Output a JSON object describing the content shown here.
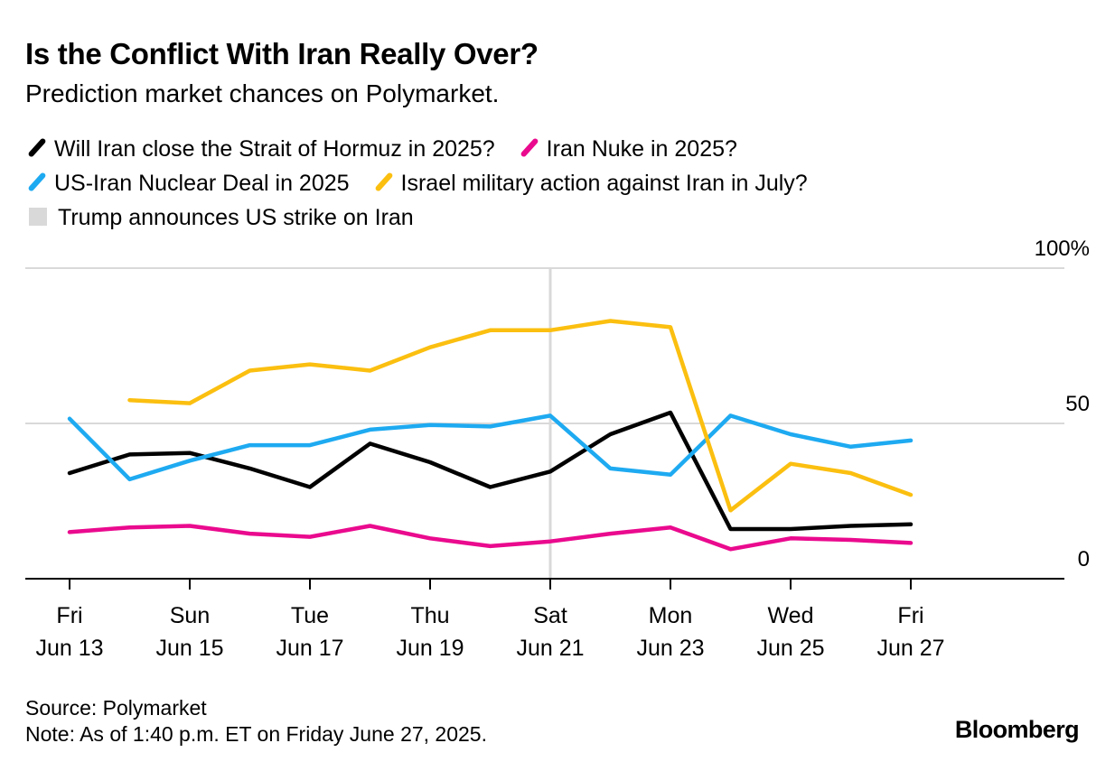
{
  "title": "Is the Conflict With Iran Really Over?",
  "subtitle": "Prediction market chances on Polymarket.",
  "legend": {
    "hormuz": "Will Iran close the Strait of Hormuz in 2025?",
    "nuke": "Iran Nuke in 2025?",
    "deal": "US-Iran Nuclear Deal in 2025",
    "israel": "Israel military action against Iran in July?",
    "strike": "Trump announces US strike on Iran"
  },
  "colors": {
    "hormuz": "#000000",
    "nuke": "#ea0a8e",
    "deal": "#1eaaf1",
    "israel": "#fbbf10",
    "strike": "#d9d9d9",
    "grid": "#d9d9d9",
    "axis": "#000000"
  },
  "chart_data": {
    "type": "line",
    "x": [
      "2025-06-13",
      "2025-06-14",
      "2025-06-15",
      "2025-06-16",
      "2025-06-17",
      "2025-06-18",
      "2025-06-19",
      "2025-06-20",
      "2025-06-21",
      "2025-06-22",
      "2025-06-23",
      "2025-06-24",
      "2025-06-25",
      "2025-06-26",
      "2025-06-27"
    ],
    "series": [
      {
        "key": "hormuz",
        "name": "Will Iran close the Strait of Hormuz in 2025?",
        "values": [
          34,
          40,
          40.5,
          35.5,
          29.5,
          43.5,
          37.5,
          29.5,
          34.5,
          46.5,
          53.5,
          16,
          16,
          17,
          17.5
        ]
      },
      {
        "key": "nuke",
        "name": "Iran Nuke in 2025?",
        "values": [
          15,
          16.5,
          17,
          14.5,
          13.5,
          17,
          13,
          10.5,
          12,
          14.5,
          16.5,
          9.5,
          13,
          12.5,
          11.5
        ]
      },
      {
        "key": "deal",
        "name": "US-Iran Nuclear Deal in 2025",
        "values": [
          51.5,
          32,
          38,
          43,
          43,
          48,
          49.5,
          49,
          52.5,
          35.5,
          33.5,
          52.5,
          46.5,
          42.5,
          44.5
        ]
      },
      {
        "key": "israel",
        "name": "Israel military action against Iran in July?",
        "values": [
          null,
          57.5,
          56.5,
          67,
          69,
          67,
          74.5,
          80,
          80,
          83,
          81,
          22,
          37,
          34,
          27
        ]
      }
    ],
    "event": {
      "name": "Trump announces US strike on Iran",
      "x": "2025-06-21"
    },
    "x_ticks": [
      {
        "x": "2025-06-13",
        "day": "Fri",
        "date": "Jun 13"
      },
      {
        "x": "2025-06-15",
        "day": "Sun",
        "date": "Jun 15"
      },
      {
        "x": "2025-06-17",
        "day": "Tue",
        "date": "Jun 17"
      },
      {
        "x": "2025-06-19",
        "day": "Thu",
        "date": "Jun 19"
      },
      {
        "x": "2025-06-21",
        "day": "Sat",
        "date": "Jun 21"
      },
      {
        "x": "2025-06-23",
        "day": "Mon",
        "date": "Jun 23"
      },
      {
        "x": "2025-06-25",
        "day": "Wed",
        "date": "Jun 25"
      },
      {
        "x": "2025-06-27",
        "day": "Fri",
        "date": "Jun 27"
      }
    ],
    "y_ticks": [
      {
        "value": 0,
        "label": "0"
      },
      {
        "value": 50,
        "label": "50"
      },
      {
        "value": 100,
        "label": "100%"
      }
    ],
    "ylim": [
      0,
      100
    ],
    "grid": true,
    "legend_position": "top"
  },
  "footer": {
    "source": "Source: Polymarket",
    "note": "Note: As of 1:40 p.m. ET on Friday June 27, 2025."
  },
  "brand": "Bloomberg"
}
